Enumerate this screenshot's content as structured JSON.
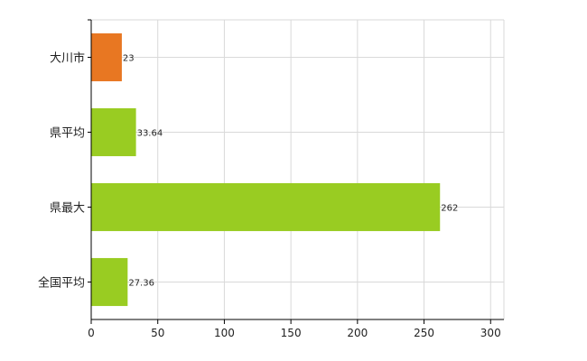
{
  "chart_data": {
    "type": "bar",
    "orientation": "horizontal",
    "categories": [
      "大川市",
      "県平均",
      "県最大",
      "全国平均"
    ],
    "values": [
      23,
      33.64,
      262,
      27.36
    ],
    "data_labels": [
      "23",
      "33.64",
      "262",
      "27.36"
    ],
    "bar_colors": [
      "#E87722",
      "#99CC22",
      "#99CC22",
      "#99CC22"
    ],
    "xlim": [
      0,
      310
    ],
    "x_ticks": [
      0,
      50,
      100,
      150,
      200,
      250,
      300
    ],
    "x_tick_labels": [
      "0",
      "50",
      "100",
      "150",
      "200",
      "250",
      "300"
    ],
    "grid": true,
    "title": "",
    "xlabel": "",
    "ylabel": ""
  }
}
